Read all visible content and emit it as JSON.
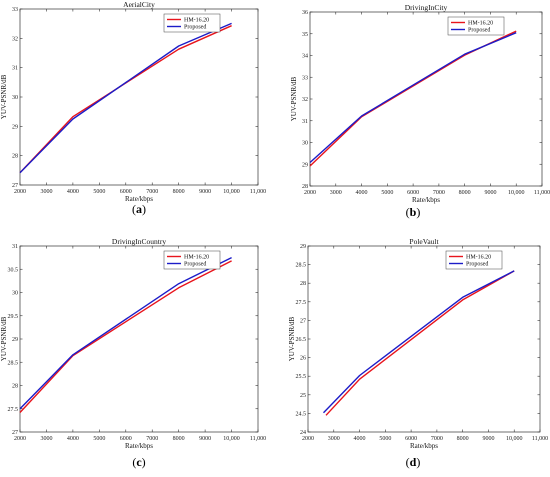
{
  "chart_data": [
    {
      "type": "line",
      "caption_letter": "a",
      "title": "AerialCity",
      "xlabel": "Rate/kbps",
      "ylabel": "YUV-PSNR/dB",
      "xlim": [
        2000,
        11000
      ],
      "ylim": [
        27,
        33
      ],
      "xticks": [
        "2000",
        "3000",
        "4000",
        "5000",
        "6000",
        "7000",
        "8000",
        "9000",
        "10,000",
        "11,000"
      ],
      "yticks": [
        "27",
        "28",
        "29",
        "30",
        "31",
        "32",
        "33"
      ],
      "series": [
        {
          "name": "HM-16.20",
          "color": "#e8141c",
          "x": [
            2000,
            4000,
            8000,
            10000
          ],
          "y": [
            27.42,
            29.33,
            31.63,
            32.43
          ]
        },
        {
          "name": "Proposed",
          "color": "#1c1cc8",
          "x": [
            2000,
            4000,
            8000,
            10000
          ],
          "y": [
            27.42,
            29.25,
            31.74,
            32.51
          ]
        }
      ]
    },
    {
      "type": "line",
      "caption_letter": "b",
      "title": "DrivingInCity",
      "xlabel": "Rate/kbps",
      "ylabel": "YUV-PSNR/dB",
      "xlim": [
        2000,
        11000
      ],
      "ylim": [
        28,
        36
      ],
      "xticks": [
        "2000",
        "3000",
        "4000",
        "5000",
        "6000",
        "7000",
        "8000",
        "9000",
        "10,000",
        "11,000"
      ],
      "yticks": [
        "28",
        "29",
        "30",
        "31",
        "32",
        "33",
        "34",
        "35",
        "36"
      ],
      "series": [
        {
          "name": "HM-16.20",
          "color": "#e8141c",
          "x": [
            2000,
            4000,
            8000,
            10000
          ],
          "y": [
            28.92,
            31.18,
            34.02,
            35.12
          ]
        },
        {
          "name": "Proposed",
          "color": "#1c1cc8",
          "x": [
            2000,
            4000,
            8000,
            10000
          ],
          "y": [
            29.08,
            31.22,
            34.06,
            35.05
          ]
        }
      ]
    },
    {
      "type": "line",
      "caption_letter": "c",
      "title": "DrivingInCountry",
      "xlabel": "Rate/kbps",
      "ylabel": "YUV-PSNR/dB",
      "xlim": [
        2000,
        11000
      ],
      "ylim": [
        27,
        31
      ],
      "xticks": [
        "2000",
        "3000",
        "4000",
        "5000",
        "6000",
        "7000",
        "8000",
        "9000",
        "10,000",
        "11,000"
      ],
      "yticks": [
        "27",
        "27.5",
        "28",
        "28.5",
        "29",
        "29.5",
        "30",
        "30.5",
        "31"
      ],
      "series": [
        {
          "name": "HM-16.20",
          "color": "#e8141c",
          "x": [
            2000,
            4000,
            8000,
            10000
          ],
          "y": [
            27.42,
            28.64,
            30.1,
            30.68
          ]
        },
        {
          "name": "Proposed",
          "color": "#1c1cc8",
          "x": [
            2000,
            4000,
            8000,
            10000
          ],
          "y": [
            27.5,
            28.66,
            30.19,
            30.75
          ]
        }
      ]
    },
    {
      "type": "line",
      "caption_letter": "d",
      "title": "PoleVault",
      "xlabel": "Rate/kbps",
      "ylabel": "YUV-PSNR/dB",
      "xlim": [
        2000,
        11000
      ],
      "ylim": [
        24,
        29
      ],
      "xticks": [
        "2000",
        "3000",
        "4000",
        "5000",
        "6000",
        "7000",
        "8000",
        "9000",
        "10,000",
        "11,000"
      ],
      "yticks": [
        "24",
        "24.5",
        "25",
        "25.5",
        "26",
        "26.5",
        "27",
        "27.5",
        "28",
        "28.5",
        "29"
      ],
      "series": [
        {
          "name": "HM-16.20",
          "color": "#e8141c",
          "x": [
            2700,
            4000,
            8000,
            10000
          ],
          "y": [
            24.45,
            25.42,
            27.55,
            28.33
          ]
        },
        {
          "name": "Proposed",
          "color": "#1c1cc8",
          "x": [
            2600,
            4000,
            8000,
            10000
          ],
          "y": [
            24.52,
            25.52,
            27.62,
            28.33
          ]
        }
      ]
    }
  ]
}
